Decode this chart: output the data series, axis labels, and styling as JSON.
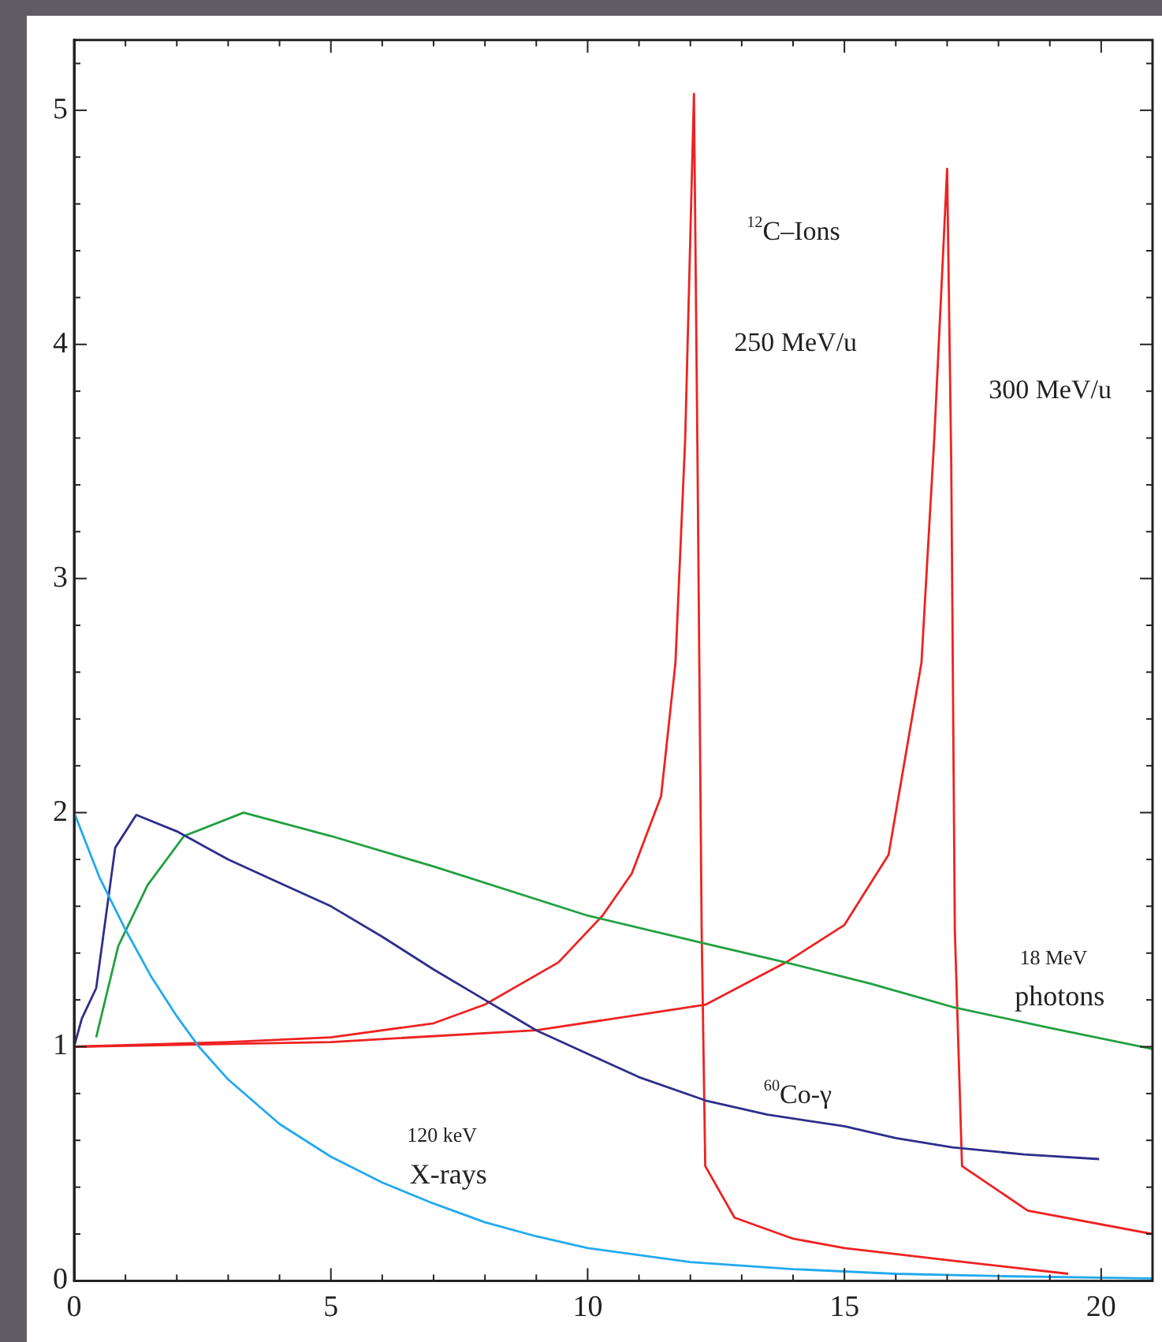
{
  "chart_data": {
    "type": "line",
    "marker": "none",
    "grid": false,
    "legend": false,
    "xlim": [
      0,
      21
    ],
    "ylim": [
      0,
      5.3
    ],
    "xticks": [
      0,
      {
        "value": 1,
        "label": null
      },
      {
        "value": 2,
        "label": null
      },
      {
        "value": 3,
        "label": null
      },
      {
        "value": 4,
        "label": null
      },
      5,
      {
        "value": 6,
        "label": null
      },
      {
        "value": 7,
        "label": null
      },
      {
        "value": 8,
        "label": null
      },
      {
        "value": 9,
        "label": null
      },
      10,
      {
        "value": 11,
        "label": null
      },
      {
        "value": 12,
        "label": null
      },
      {
        "value": 13,
        "label": null
      },
      {
        "value": 14,
        "label": null
      },
      15,
      {
        "value": 16,
        "label": null
      },
      {
        "value": 17,
        "label": null
      },
      {
        "value": 18,
        "label": null
      },
      {
        "value": 19,
        "label": null
      },
      20,
      {
        "value": 21,
        "label": null
      }
    ],
    "yticks": [
      0,
      {
        "value": 0.2,
        "label": null
      },
      {
        "value": 0.4,
        "label": null
      },
      {
        "value": 0.6,
        "label": null
      },
      {
        "value": 0.8,
        "label": null
      },
      1,
      {
        "value": 1.2,
        "label": null
      },
      {
        "value": 1.4,
        "label": null
      },
      {
        "value": 1.6,
        "label": null
      },
      {
        "value": 1.8,
        "label": null
      },
      2,
      {
        "value": 2.2,
        "label": null
      },
      {
        "value": 2.4,
        "label": null
      },
      {
        "value": 2.6,
        "label": null
      },
      {
        "value": 2.8,
        "label": null
      },
      3,
      {
        "value": 3.2,
        "label": null
      },
      {
        "value": 3.4,
        "label": null
      },
      {
        "value": 3.6,
        "label": null
      },
      {
        "value": 3.8,
        "label": null
      },
      4,
      {
        "value": 4.2,
        "label": null
      },
      {
        "value": 4.4,
        "label": null
      },
      {
        "value": 4.6,
        "label": null
      },
      {
        "value": 4.8,
        "label": null
      },
      5,
      {
        "value": 5.2,
        "label": null
      }
    ],
    "series": [
      {
        "name": "120 keV X-rays",
        "color": "#22aaee",
        "x": [
          0,
          0.5,
          1,
          1.5,
          2,
          2.43,
          3,
          4,
          5,
          6,
          7,
          8,
          9,
          10,
          12,
          14,
          16,
          18,
          21
        ],
        "values": [
          2,
          1.72,
          1.5,
          1.3,
          1.13,
          1.0,
          0.86,
          0.67,
          0.53,
          0.42,
          0.33,
          0.25,
          0.19,
          0.14,
          0.08,
          0.05,
          0.03,
          0.02,
          0.01
        ]
      },
      {
        "name": "$^{60}$Co-γ",
        "color": "#2e2e8c",
        "x": [
          0,
          0.15,
          0.43,
          0.8,
          1.21,
          2,
          3,
          4,
          5,
          6,
          7,
          8,
          9,
          10,
          11,
          12.3,
          13.5,
          15,
          16,
          17.1,
          18.5,
          19.96
        ],
        "values": [
          1,
          1.12,
          1.25,
          1.85,
          1.99,
          1.92,
          1.8,
          1.7,
          1.6,
          1.47,
          1.33,
          1.2,
          1.07,
          0.97,
          0.87,
          0.77,
          0.71,
          0.66,
          0.61,
          0.57,
          0.54,
          0.52
        ]
      },
      {
        "name": "18 MeV photons",
        "color": "#22a040",
        "x": [
          0.43,
          0.86,
          1.43,
          2.14,
          3.3,
          5,
          7,
          10,
          12.3,
          13.86,
          15.5,
          17.1,
          19,
          21
        ],
        "values": [
          1.04,
          1.43,
          1.69,
          1.9,
          2.0,
          1.9,
          1.77,
          1.56,
          1.44,
          1.36,
          1.27,
          1.17,
          1.08,
          0.99
        ]
      },
      {
        "name": "250 MeV/u",
        "color": "#ee2222",
        "x": [
          0,
          3,
          5,
          7,
          8,
          9.43,
          10.29,
          10.86,
          11.43,
          11.71,
          11.9,
          12.07,
          12.14,
          12.22,
          12.29,
          12.86,
          14,
          15,
          17.14,
          19.36
        ],
        "values": [
          1,
          1.02,
          1.04,
          1.1,
          1.18,
          1.36,
          1.56,
          1.74,
          2.07,
          2.64,
          3.6,
          5.07,
          3.5,
          1.5,
          0.49,
          0.27,
          0.18,
          0.14,
          0.085,
          0.03
        ]
      },
      {
        "name": "300 MeV/u",
        "color": "#ee2222",
        "x": [
          0,
          5,
          9,
          12.3,
          13.86,
          15,
          15.86,
          16.5,
          16.75,
          17.0,
          17.08,
          17.15,
          17.29,
          18.57,
          21
        ],
        "values": [
          1,
          1.02,
          1.07,
          1.18,
          1.36,
          1.52,
          1.82,
          2.64,
          3.6,
          4.75,
          3.5,
          1.5,
          0.49,
          0.3,
          0.2
        ]
      }
    ],
    "annotations": [
      "$^{12}$C–Ions"
    ]
  }
}
